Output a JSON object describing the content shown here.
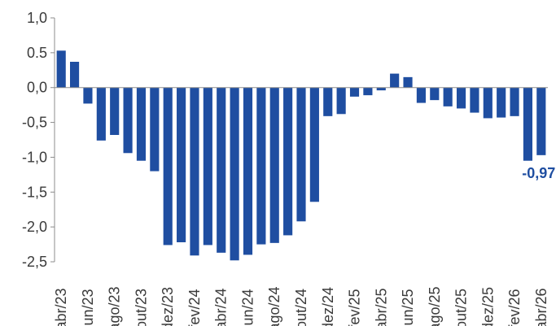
{
  "chart_data": {
    "type": "bar",
    "ylim": [
      -2.5,
      1.0
    ],
    "y_ticks": [
      "1,0",
      "0.5",
      "0,0",
      "-0,5",
      "-1,0",
      "-1,5",
      "-2,0",
      "-2,5"
    ],
    "y_tick_values": [
      1.0,
      0.5,
      0.0,
      -0.5,
      -1.0,
      -1.5,
      -2.0,
      -2.5
    ],
    "grid": false,
    "bar_color": "#1f4ea1",
    "axis_color": "#8c8c8c",
    "categories": [
      "abr/23",
      "mai/23",
      "jun/23",
      "jul/23",
      "ago/23",
      "set/23",
      "out/23",
      "nov/23",
      "dez/23",
      "jan/24",
      "fev/24",
      "mar/24",
      "abr/24",
      "mai/24",
      "jun/24",
      "jul/24",
      "ago/24",
      "set/24",
      "out/24",
      "nov/24",
      "dez/24",
      "jan/25",
      "fev/25",
      "mar/25",
      "abr/25",
      "mai/25",
      "jun/25",
      "jul/25",
      "ago/25",
      "set/25",
      "out/25",
      "nov/25",
      "dez/25",
      "jan/26",
      "fev/26",
      "mar/26",
      "abr/26"
    ],
    "x_tick_labels": [
      {
        "index": 0,
        "text": "abr/23"
      },
      {
        "index": 2,
        "text": "jun/23"
      },
      {
        "index": 4,
        "text": "ago/23"
      },
      {
        "index": 6,
        "text": "out/23"
      },
      {
        "index": 8,
        "text": "dez/23"
      },
      {
        "index": 10,
        "text": "fev/24"
      },
      {
        "index": 12,
        "text": "abr/24"
      },
      {
        "index": 14,
        "text": "jun/24"
      },
      {
        "index": 16,
        "text": "ago/24"
      },
      {
        "index": 18,
        "text": "out/24"
      },
      {
        "index": 20,
        "text": "dez/24"
      },
      {
        "index": 22,
        "text": "fev/25"
      },
      {
        "index": 24,
        "text": "abr/25"
      },
      {
        "index": 26,
        "text": "jun/25"
      },
      {
        "index": 28,
        "text": "ago/25"
      },
      {
        "index": 30,
        "text": "out/25"
      },
      {
        "index": 32,
        "text": "dez/25"
      },
      {
        "index": 34,
        "text": "fev/26"
      },
      {
        "index": 36,
        "text": "abr/26"
      }
    ],
    "values": [
      0.53,
      0.37,
      -0.23,
      -0.76,
      -0.68,
      -0.94,
      -1.05,
      -1.2,
      -2.26,
      -2.22,
      -2.41,
      -2.26,
      -2.37,
      -2.48,
      -2.4,
      -2.25,
      -2.23,
      -2.12,
      -1.92,
      -1.64,
      -0.41,
      -0.38,
      -0.13,
      -0.11,
      -0.04,
      0.2,
      0.15,
      -0.22,
      -0.18,
      -0.27,
      -0.3,
      -0.36,
      -0.44,
      -0.43,
      -0.41,
      -1.05,
      -0.97
    ],
    "annotations": [
      {
        "index": 36,
        "text": "-0,97",
        "color": "#1f4ea1"
      }
    ]
  }
}
